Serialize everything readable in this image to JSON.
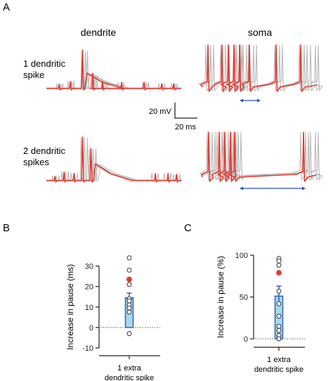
{
  "panels": {
    "a": {
      "letter": "A",
      "col_dendrite": "dendrite",
      "col_soma": "soma",
      "row1_label": [
        "1 dendritic",
        "spike"
      ],
      "row2_label": [
        "2 dendritic",
        "spikes"
      ],
      "scale_v": "20 mV",
      "scale_t": "20 ms"
    },
    "b": {
      "letter": "B"
    },
    "c": {
      "letter": "C"
    }
  },
  "colors": {
    "red": "#e8372c",
    "gray": "#b5b5b5",
    "blue": "#2b4fb4",
    "box_fill": "#a9d8ec",
    "box_edge": "#2e63b8",
    "axis": "#222222"
  },
  "chart_data": [
    {
      "type": "bar",
      "panel": "B",
      "ylabel": "Increase in pause (ms)",
      "categories": [
        "1 extra\ndendritic spike"
      ],
      "xlabel_lines": [
        "1 extra",
        "dendritic spike"
      ],
      "yticks": [
        -10,
        0,
        10,
        20,
        30
      ],
      "ylim": [
        -10,
        35
      ],
      "bar_value": 14.5,
      "bar_error": [
        12.5,
        16.8
      ],
      "points": [
        34,
        28,
        21,
        14,
        13,
        11,
        9.5,
        7.5,
        -3
      ],
      "highlight_point": 23.5
    },
    {
      "type": "bar",
      "panel": "C",
      "ylabel": "Increase in pause (%)",
      "categories": [
        "1 extra\ndendritic spike"
      ],
      "xlabel_lines": [
        "1 extra",
        "dendritic spike"
      ],
      "yticks": [
        0,
        50,
        100
      ],
      "ylim": [
        -5,
        100
      ],
      "bar_value": 51,
      "bar_error": [
        42,
        63
      ],
      "points": [
        96,
        93,
        88,
        57,
        42,
        27,
        15,
        10,
        4,
        0
      ],
      "highlight_point": 79
    }
  ]
}
